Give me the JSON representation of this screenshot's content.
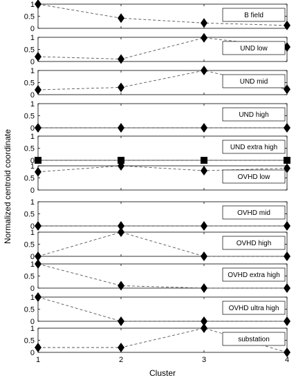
{
  "chart_data": {
    "type": "line",
    "layout": "small-multiples",
    "xlabel": "Cluster",
    "ylabel": "Normalized centroid coordinate",
    "x": [
      1,
      2,
      3,
      4
    ],
    "x_ticks": [
      "1",
      "2",
      "3",
      "4"
    ],
    "ylim": [
      0,
      1
    ],
    "y_ticks": [
      "0",
      "0.5",
      "1"
    ],
    "line_style": "dashed",
    "legend_placement": "top-right",
    "grid": false,
    "series": [
      {
        "name": "B field",
        "values": [
          1.0,
          0.42,
          0.22,
          0.12
        ],
        "marker": "diamond"
      },
      {
        "name": "UND low",
        "values": [
          0.2,
          0.1,
          0.98,
          0.6
        ],
        "marker": "diamond"
      },
      {
        "name": "UND mid",
        "values": [
          0.2,
          0.3,
          1.0,
          0.22
        ],
        "marker": "diamond"
      },
      {
        "name": "UND high",
        "values": [
          0,
          0,
          0,
          0
        ],
        "marker": "diamond"
      },
      {
        "name": "UND extra high",
        "values": [
          0,
          0,
          0,
          0
        ],
        "marker": "square"
      },
      {
        "name": "OVHD low",
        "values": [
          0.75,
          1.0,
          0.8,
          0.9
        ],
        "marker": "diamond"
      },
      {
        "name": "OVHD mid",
        "values": [
          0,
          0,
          0,
          0
        ],
        "marker": "diamond"
      },
      {
        "name": "OVHD high",
        "values": [
          0.0,
          1.0,
          0.0,
          0.0
        ],
        "marker": "diamond"
      },
      {
        "name": "OVHD extra high",
        "values": [
          1.0,
          0.1,
          0.0,
          0.0
        ],
        "marker": "diamond"
      },
      {
        "name": "OVHD ultra high",
        "values": [
          1.0,
          0.0,
          0.0,
          0.0
        ],
        "marker": "diamond"
      },
      {
        "name": "substation",
        "values": [
          0.2,
          0.2,
          1.0,
          0.0
        ],
        "marker": "diamond"
      }
    ]
  }
}
